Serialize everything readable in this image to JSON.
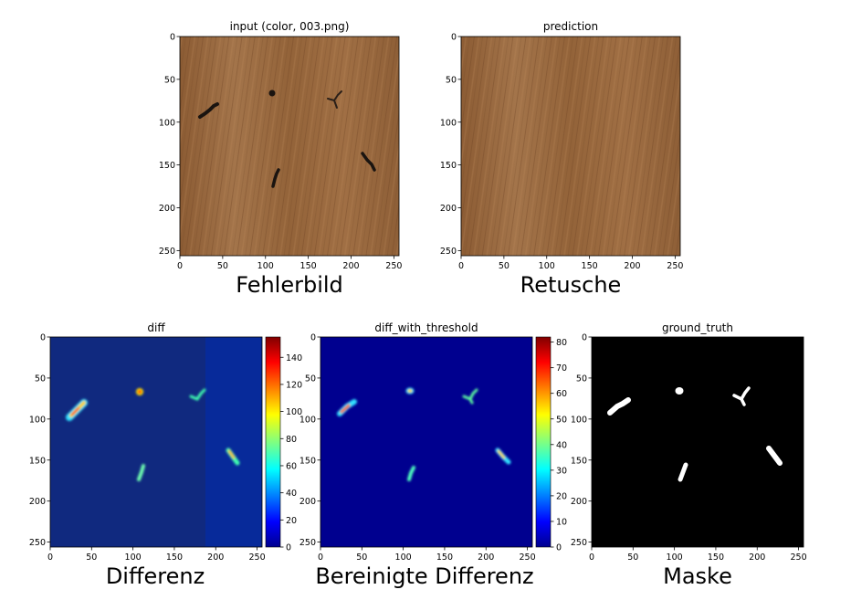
{
  "panels": {
    "input": {
      "title": "input (color, 003.png)",
      "caption": "Fehlerbild"
    },
    "prediction": {
      "title": "prediction",
      "caption": "Retusche"
    },
    "diff": {
      "title": "diff",
      "caption": "Differenz",
      "colorbar_ticks": [
        "0",
        "20",
        "40",
        "60",
        "80",
        "100",
        "120",
        "140"
      ]
    },
    "diff_threshold": {
      "title": "diff_with_threshold",
      "caption": "Bereinigte Differenz",
      "colorbar_ticks": [
        "0",
        "10",
        "20",
        "30",
        "40",
        "50",
        "60",
        "70",
        "80"
      ]
    },
    "ground_truth": {
      "title": "ground_truth",
      "caption": "Maske"
    }
  },
  "axes": {
    "x_ticks": [
      "0",
      "50",
      "100",
      "150",
      "200",
      "250"
    ],
    "y_ticks": [
      "0",
      "50",
      "100",
      "150",
      "200",
      "250"
    ]
  },
  "colors": {
    "wood_base": "#9a6a3f",
    "jet_background": "#00008f",
    "mask_background": "#000000",
    "mask_foreground": "#ffffff"
  }
}
